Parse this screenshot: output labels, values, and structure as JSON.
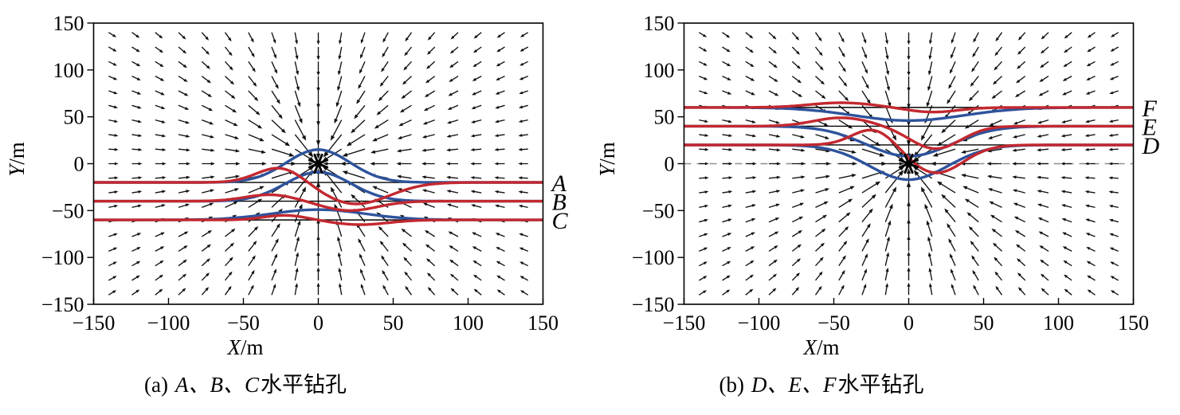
{
  "styles": {
    "background": "#ffffff",
    "red_curve": "#c32830",
    "blue_curve": "#2e539c",
    "arrow_color": "#111111",
    "baseline_color": "#000000",
    "dashed_zero_color": "#8f8f8f",
    "frame_color": "#000000"
  },
  "chart_data": [
    {
      "type": "quiver",
      "title": "(a) A、B、C水平钻孔",
      "caption_prefix": "(a)",
      "caption_letters": "A、B、C",
      "caption_suffix": "水平钻孔",
      "xlabel_letter": "X",
      "xlabel_unit": "/m",
      "ylabel_letter": "Y",
      "ylabel_unit": "/m",
      "xlim": [
        -150,
        150
      ],
      "ylim": [
        -150,
        150
      ],
      "x_ticks": [
        -150,
        -100,
        -50,
        0,
        50,
        100,
        150
      ],
      "y_ticks": [
        150,
        100,
        50,
        0,
        -50,
        -100,
        -150
      ],
      "grid": false,
      "vector_field": {
        "pattern": "radial convergence toward sink at origin",
        "grid_start": -140,
        "grid_end": 140,
        "grid_count": 19
      },
      "sink": {
        "x": 0,
        "y": 0,
        "marker": "star"
      },
      "zero_line_dashed": false,
      "boreholes": [
        {
          "label": "A",
          "baseline_y": -20,
          "blue_curve": {
            "peak_x": 0,
            "peak_y": 15,
            "sigma": 30
          },
          "red_curve": {
            "peak": {
              "x": -25,
              "y": -3,
              "sigma": 22
            },
            "dip": {
              "x": 25,
              "y": -43,
              "sigma": 32
            }
          }
        },
        {
          "label": "B",
          "baseline_y": -40,
          "blue_curve": {
            "peak_x": 0,
            "peak_y": -9,
            "sigma": 31
          },
          "red_curve": {
            "peak": {
              "x": -32,
              "y": -33,
              "sigma": 24
            },
            "dip": {
              "x": 21,
              "y": -50,
              "sigma": 26
            }
          }
        },
        {
          "label": "C",
          "baseline_y": -60,
          "blue_curve": {
            "peak_x": 0,
            "peak_y": -49,
            "sigma": 44
          },
          "red_curve": {
            "peak": {
              "x": -22,
              "y": -55,
              "sigma": 20
            },
            "dip": {
              "x": 28,
              "y": -65,
              "sigma": 26
            }
          }
        }
      ]
    },
    {
      "type": "quiver",
      "title": "(b) D、E、F水平钻孔",
      "caption_prefix": "(b)",
      "caption_letters": "D、E、F",
      "caption_suffix": "水平钻孔",
      "xlabel_letter": "X",
      "xlabel_unit": "/m",
      "ylabel_letter": "Y",
      "ylabel_unit": "/m",
      "xlim": [
        -150,
        150
      ],
      "ylim": [
        -150,
        150
      ],
      "x_ticks": [
        -150,
        -100,
        -50,
        0,
        50,
        100,
        150
      ],
      "y_ticks": [
        150,
        100,
        50,
        0,
        -50,
        -100,
        -150
      ],
      "grid": false,
      "vector_field": {
        "pattern": "radial convergence toward sink at origin",
        "grid_start": -140,
        "grid_end": 140,
        "grid_count": 19
      },
      "sink": {
        "x": 0,
        "y": 0,
        "marker": "star"
      },
      "zero_line_dashed": true,
      "boreholes": [
        {
          "label": "F",
          "baseline_y": 60,
          "blue_curve": {
            "peak_x": 0,
            "peak_y": 46,
            "sigma": 52
          },
          "red_curve": {
            "peak": {
              "x": -45,
              "y": 65,
              "sigma": 30
            },
            "dip": {
              "x": 16,
              "y": 55,
              "sigma": 24
            }
          }
        },
        {
          "label": "E",
          "baseline_y": 40,
          "blue_curve": {
            "peak_x": 0,
            "peak_y": 8,
            "sigma": 40
          },
          "red_curve": {
            "peak": {
              "x": -45,
              "y": 49,
              "sigma": 26
            },
            "dip": {
              "x": 18,
              "y": 16,
              "sigma": 24
            }
          }
        },
        {
          "label": "D",
          "baseline_y": 20,
          "blue_curve": {
            "peak_x": 0,
            "peak_y": -17,
            "sigma": 37
          },
          "red_curve": {
            "peak": {
              "x": -23,
              "y": 38,
              "sigma": 20
            },
            "dip": {
              "x": 18,
              "y": -10,
              "sigma": 26
            }
          }
        }
      ]
    }
  ]
}
